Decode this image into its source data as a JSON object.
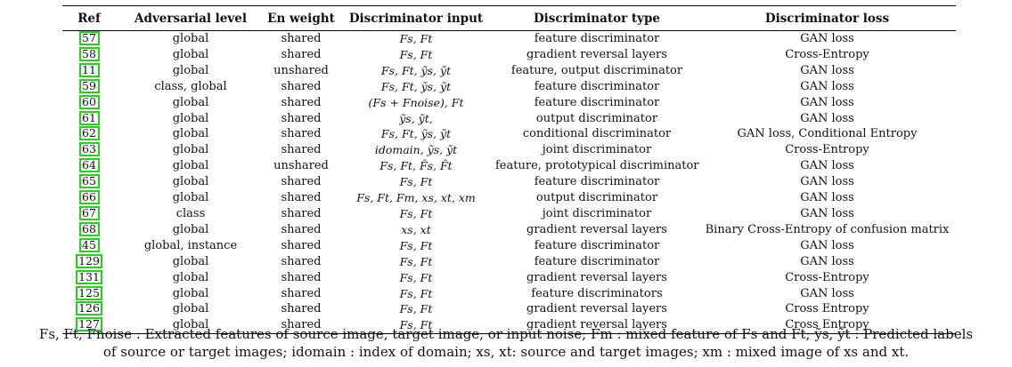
{
  "table": {
    "headers": [
      "Ref",
      "Adversarial level",
      "En weight",
      "Discriminator input",
      "Discriminator type",
      "Discriminator loss"
    ],
    "rows": [
      {
        "ref": "57",
        "level": "global",
        "weight": "shared",
        "input": "Fs, Ft",
        "type": "feature discriminator",
        "loss": "GAN loss"
      },
      {
        "ref": "58",
        "level": "global",
        "weight": "shared",
        "input": "Fs, Ft",
        "type": "gradient reversal layers",
        "loss": "Cross-Entropy"
      },
      {
        "ref": "11",
        "level": "global",
        "weight": "unshared",
        "input": "Fs, Ft, ỹs, ỹt",
        "type": "feature, output discriminator",
        "loss": "GAN loss"
      },
      {
        "ref": "59",
        "level": "class, global",
        "weight": "shared",
        "input": "Fs, Ft, ỹs, ỹt",
        "type": "feature discriminator",
        "loss": "GAN loss"
      },
      {
        "ref": "60",
        "level": "global",
        "weight": "shared",
        "input": "(Fs + Fnoise), Ft",
        "type": "feature discriminator",
        "loss": "GAN loss"
      },
      {
        "ref": "61",
        "level": "global",
        "weight": "shared",
        "input": "ỹs, ỹt,",
        "type": "output discriminator",
        "loss": "GAN loss"
      },
      {
        "ref": "62",
        "level": "global",
        "weight": "shared",
        "input": "Fs, Ft, ỹs, ỹt",
        "type": "conditional discriminator",
        "loss": "GAN loss, Conditional Entropy"
      },
      {
        "ref": "63",
        "level": "global",
        "weight": "shared",
        "input": "idomain, ỹs, ỹt",
        "type": "joint discriminator",
        "loss": "Cross-Entropy"
      },
      {
        "ref": "64",
        "level": "global",
        "weight": "unshared",
        "input": "Fs, Ft, F̂s, F̂t",
        "type": "feature, prototypical discriminator",
        "loss": "GAN loss"
      },
      {
        "ref": "65",
        "level": "global",
        "weight": "shared",
        "input": "Fs, Ft",
        "type": "feature discriminator",
        "loss": "GAN loss"
      },
      {
        "ref": "66",
        "level": "global",
        "weight": "shared",
        "input": "Fs, Ft, Fm, xs, xt, xm",
        "type": "output discriminator",
        "loss": "GAN loss"
      },
      {
        "ref": "67",
        "level": "class",
        "weight": "shared",
        "input": "Fs, Ft",
        "type": "joint discriminator",
        "loss": "GAN loss"
      },
      {
        "ref": "68",
        "level": "global",
        "weight": "shared",
        "input": "xs, xt",
        "type": "gradient reversal layers",
        "loss": "Binary Cross-Entropy of confusion matrix"
      },
      {
        "ref": "45",
        "level": "global, instance",
        "weight": "shared",
        "input": "Fs, Ft",
        "type": "feature discriminator",
        "loss": "GAN loss"
      },
      {
        "ref": "129",
        "level": "global",
        "weight": "shared",
        "input": "Fs, Ft",
        "type": "feature discriminator",
        "loss": "GAN loss"
      },
      {
        "ref": "131",
        "level": "global",
        "weight": "shared",
        "input": "Fs, Ft",
        "type": "gradient reversal layers",
        "loss": "Cross-Entropy"
      },
      {
        "ref": "125",
        "level": "global",
        "weight": "shared",
        "input": "Fs, Ft",
        "type": "feature discriminators",
        "loss": "GAN loss"
      },
      {
        "ref": "126",
        "level": "global",
        "weight": "shared",
        "input": "Fs, Ft",
        "type": "gradient reversal layers",
        "loss": "Cross Entropy"
      },
      {
        "ref": "127",
        "level": "global",
        "weight": "shared",
        "input": "Fs, Ft",
        "type": "gradient reversal layers",
        "loss": "Cross Entropy"
      }
    ]
  },
  "caption": {
    "line1": "Fs, Ft, Fnoise : Extracted features of source image, target image, or input noise; Fm : mixed feature of Fs and Ft; ỹs, ỹt : Predicted labels",
    "line2": "of source or target images; idomain : index of domain; xs, xt: source and target images; xm : mixed image of xs and xt."
  },
  "colors": {
    "ref_box": "#22d31a",
    "rule": "#000000"
  }
}
